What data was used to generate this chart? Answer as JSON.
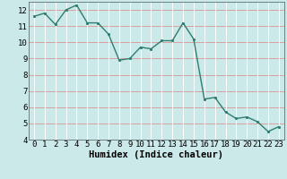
{
  "xlabel": "Humidex (Indice chaleur)",
  "x": [
    0,
    1,
    2,
    3,
    4,
    5,
    6,
    7,
    8,
    9,
    10,
    11,
    12,
    13,
    14,
    15,
    16,
    17,
    18,
    19,
    20,
    21,
    22,
    23
  ],
  "y": [
    11.6,
    11.8,
    11.1,
    12.0,
    12.3,
    11.2,
    11.2,
    10.5,
    8.9,
    9.0,
    9.7,
    9.6,
    10.1,
    10.1,
    11.2,
    10.2,
    6.5,
    6.6,
    5.7,
    5.3,
    5.4,
    5.1,
    4.5,
    4.8
  ],
  "line_color": "#2e7d6e",
  "marker_color": "#2e7d6e",
  "bg_color": "#cce9ea",
  "grid_major_h_color": "#d9a0a0",
  "grid_major_v_color": "#ffffff",
  "grid_minor_color": "#b8d9db",
  "ylim": [
    4,
    12.5
  ],
  "xlim": [
    -0.5,
    23.5
  ],
  "yticks": [
    4,
    5,
    6,
    7,
    8,
    9,
    10,
    11,
    12
  ],
  "xticks": [
    0,
    1,
    2,
    3,
    4,
    5,
    6,
    7,
    8,
    9,
    10,
    11,
    12,
    13,
    14,
    15,
    16,
    17,
    18,
    19,
    20,
    21,
    22,
    23
  ],
  "xlabel_fontsize": 7.5,
  "tick_fontsize": 6.5,
  "line_width": 1.0,
  "marker_size": 2.5
}
